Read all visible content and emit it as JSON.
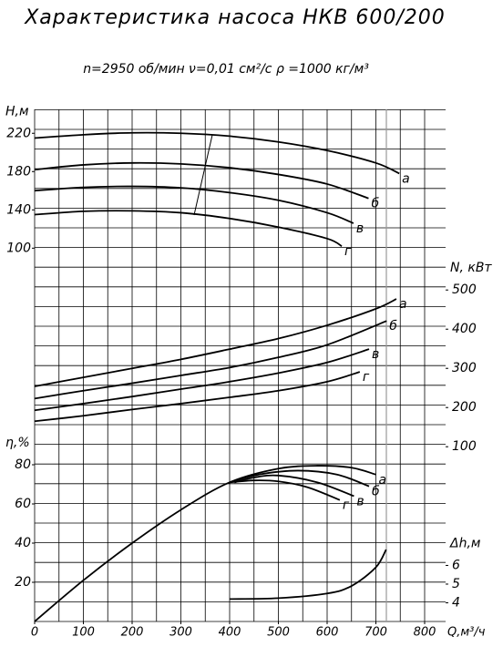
{
  "chart_data": [
    {
      "type": "line",
      "title": "Характеристика насоса НКВ 600/200",
      "subtitle": "n=2950 об/мин   ν=0,01 см²/с    ρ =1000 кг/м³",
      "y_label": "H,м",
      "yaxis_side": "left",
      "color": "#000",
      "xlim": [
        0,
        840
      ],
      "ylim": [
        -290,
        245
      ],
      "yticks": [
        100,
        140,
        180,
        220
      ],
      "series": [
        {
          "name": "а",
          "x": [
            0,
            100,
            200,
            300,
            400,
            500,
            600,
            700,
            748
          ],
          "values": [
            215,
            218.5,
            220.5,
            220,
            217,
            211,
            202,
            189,
            178
          ]
        },
        {
          "name": "б",
          "x": [
            0,
            100,
            200,
            300,
            400,
            500,
            600,
            685
          ],
          "values": [
            182,
            187,
            189,
            188,
            184,
            177,
            167,
            152
          ]
        },
        {
          "name": "в",
          "x": [
            0,
            100,
            200,
            300,
            400,
            500,
            600,
            654
          ],
          "values": [
            160,
            163.5,
            164.5,
            163,
            158,
            150,
            137,
            126
          ]
        },
        {
          "name": "г",
          "x": [
            0,
            100,
            200,
            300,
            400,
            500,
            600,
            630
          ],
          "values": [
            135,
            138.5,
            139,
            137,
            131,
            122,
            110,
            102
          ]
        }
      ]
    },
    {
      "type": "line",
      "y_label": "N, кВт",
      "yaxis_side": "right",
      "color": "#000",
      "xlim": [
        0,
        840
      ],
      "ylim": [
        -346,
        961
      ],
      "yticks": [
        100,
        200,
        300,
        400,
        500
      ],
      "series": [
        {
          "name": "а",
          "x": [
            0,
            100,
            200,
            300,
            400,
            500,
            600,
            700,
            742
          ],
          "values": [
            254,
            277,
            300,
            323,
            349,
            376,
            410,
            452,
            477
          ]
        },
        {
          "name": "б",
          "x": [
            0,
            100,
            200,
            300,
            400,
            500,
            600,
            722
          ],
          "values": [
            223,
            243,
            262,
            282,
            302,
            328,
            360,
            421
          ]
        },
        {
          "name": "в",
          "x": [
            0,
            100,
            200,
            300,
            400,
            500,
            600,
            686
          ],
          "values": [
            193,
            210,
            228,
            247,
            266,
            288,
            315,
            349
          ]
        },
        {
          "name": "г",
          "x": [
            0,
            100,
            200,
            300,
            400,
            500,
            600,
            667
          ],
          "values": [
            165,
            179,
            195,
            210,
            226,
            243,
            266,
            291
          ]
        }
      ]
    },
    {
      "type": "line",
      "y_label": "η,%",
      "yaxis_side": "left",
      "color": "#000",
      "x_label": "Q,м³/ч",
      "xlim": [
        0,
        840
      ],
      "xticks": [
        0,
        100,
        200,
        300,
        400,
        500,
        600,
        700,
        800
      ],
      "ylim": [
        0,
        261.4
      ],
      "yticks": [
        20,
        40,
        60,
        80
      ],
      "series": [
        {
          "name": "а",
          "x": [
            0,
            100,
            200,
            300,
            400,
            500,
            580,
            650,
            700
          ],
          "values": [
            0,
            21,
            40,
            57,
            71,
            78,
            79.5,
            78.5,
            75
          ]
        },
        {
          "name": "б",
          "x": [
            400,
            460,
            540,
            620,
            686
          ],
          "values": [
            71,
            75,
            77,
            75,
            69
          ]
        },
        {
          "name": "в",
          "x": [
            410,
            450,
            500,
            580,
            655
          ],
          "values": [
            71,
            73.5,
            74.5,
            71,
            64
          ]
        },
        {
          "name": "г",
          "x": [
            400,
            450,
            500,
            560,
            626
          ],
          "values": [
            71,
            72,
            71.5,
            68.5,
            62
          ]
        }
      ]
    },
    {
      "type": "line",
      "y_label": "Δh,м",
      "yaxis_side": "right",
      "color": "#000",
      "xlim": [
        0,
        840
      ],
      "ylim": [
        3,
        30.4
      ],
      "yticks": [
        4,
        5,
        6
      ],
      "series": [
        {
          "x": [
            400,
            500,
            600,
            650,
            700,
            721
          ],
          "values": [
            4.2,
            4.25,
            4.5,
            4.9,
            5.9,
            6.85
          ]
        }
      ]
    }
  ]
}
